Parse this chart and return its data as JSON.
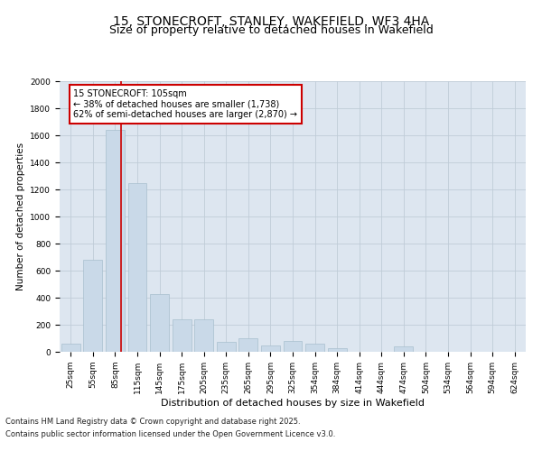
{
  "title": "15, STONECROFT, STANLEY, WAKEFIELD, WF3 4HA",
  "subtitle": "Size of property relative to detached houses in Wakefield",
  "xlabel": "Distribution of detached houses by size in Wakefield",
  "ylabel": "Number of detached properties",
  "categories": [
    "25sqm",
    "55sqm",
    "85sqm",
    "115sqm",
    "145sqm",
    "175sqm",
    "205sqm",
    "235sqm",
    "265sqm",
    "295sqm",
    "325sqm",
    "354sqm",
    "384sqm",
    "414sqm",
    "444sqm",
    "474sqm",
    "504sqm",
    "534sqm",
    "564sqm",
    "594sqm",
    "624sqm"
  ],
  "values": [
    60,
    680,
    1638,
    1250,
    430,
    240,
    240,
    75,
    100,
    50,
    80,
    60,
    30,
    0,
    0,
    40,
    0,
    0,
    0,
    0,
    0
  ],
  "bar_color": "#c9d9e8",
  "bar_edge_color": "#a8bece",
  "grid_color": "#c0ccd8",
  "background_color": "#dde6f0",
  "vline_color": "#cc0000",
  "annotation_text": "15 STONECROFT: 105sqm\n← 38% of detached houses are smaller (1,738)\n62% of semi-detached houses are larger (2,870) →",
  "annotation_box_edge_color": "#cc0000",
  "ylim": [
    0,
    2000
  ],
  "yticks": [
    0,
    200,
    400,
    600,
    800,
    1000,
    1200,
    1400,
    1600,
    1800,
    2000
  ],
  "footer_line1": "Contains HM Land Registry data © Crown copyright and database right 2025.",
  "footer_line2": "Contains public sector information licensed under the Open Government Licence v3.0.",
  "title_fontsize": 10,
  "subtitle_fontsize": 9,
  "xlabel_fontsize": 8,
  "ylabel_fontsize": 7.5,
  "tick_fontsize": 6.5,
  "annotation_fontsize": 7,
  "footer_fontsize": 6
}
